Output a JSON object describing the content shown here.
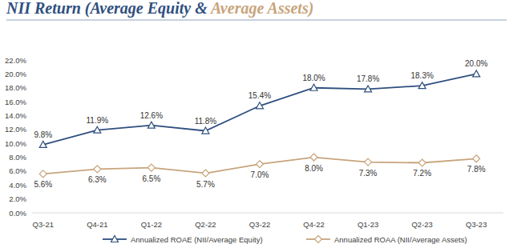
{
  "chart_data": {
    "type": "line",
    "title": "NII Return (Average Equity & Average Assets)",
    "categories": [
      "Q3-21",
      "Q4-21",
      "Q1-22",
      "Q2-22",
      "Q3-22",
      "Q4-22",
      "Q1-23",
      "Q2-23",
      "Q3-23"
    ],
    "series": [
      {
        "name": "Annualized ROAE (NII/Average Equity)",
        "color": "#2f4f7f",
        "marker": "triangle",
        "values": [
          9.8,
          11.9,
          12.6,
          11.8,
          15.4,
          18.0,
          17.8,
          18.3,
          20.0
        ],
        "value_labels": [
          "9.8%",
          "11.9%",
          "12.6%",
          "11.8%",
          "15.4%",
          "18.0%",
          "17.8%",
          "18.3%",
          "20.0%"
        ]
      },
      {
        "name": "Annualized ROAA (NII/Average Assets)",
        "color": "#c8a47c",
        "marker": "diamond",
        "values": [
          5.6,
          6.3,
          6.5,
          5.7,
          7.0,
          8.0,
          7.3,
          7.2,
          7.8
        ],
        "value_labels": [
          "5.6%",
          "6.3%",
          "6.5%",
          "5.7%",
          "7.0%",
          "8.0%",
          "7.3%",
          "7.2%",
          "7.8%"
        ]
      }
    ],
    "ylim": [
      0,
      22
    ],
    "yticks": [
      {
        "value": 0,
        "label": "0.0%"
      },
      {
        "value": 2,
        "label": "2.0%"
      },
      {
        "value": 4,
        "label": "4.0%"
      },
      {
        "value": 6,
        "label": "6.0%"
      },
      {
        "value": 8,
        "label": "8.0%"
      },
      {
        "value": 10,
        "label": "10.0%"
      },
      {
        "value": 12,
        "label": "12.0%"
      },
      {
        "value": 14,
        "label": "14.0%"
      },
      {
        "value": 16,
        "label": "16.0%"
      },
      {
        "value": 18,
        "label": "18.0%"
      },
      {
        "value": 20,
        "label": "20.0%"
      },
      {
        "value": 22,
        "label": "22.0%"
      }
    ],
    "grid": false,
    "data_labels": true,
    "legend": "bottom"
  }
}
